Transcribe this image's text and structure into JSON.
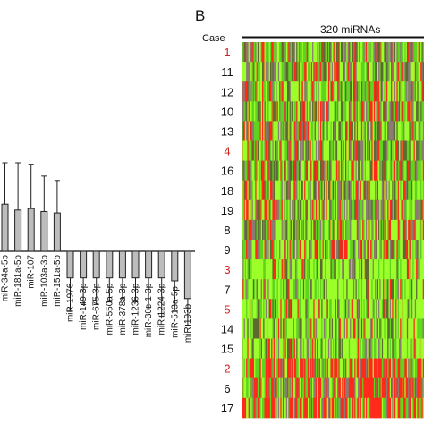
{
  "panel_a": {
    "chart_data": {
      "type": "bar",
      "categories": [
        "miR-34a-5p",
        "miR-181a-5p",
        "miR-107",
        "miR-103a-3p",
        "miR-151a-5p",
        "miR-1976",
        "miR-149-3p",
        "miR-675-3p",
        "miR-550a-5p",
        "miR-378a-3p",
        "miR-1236-3p",
        "miR-30c-1-3p",
        "miR-1224-3p",
        "miR-513a-5p",
        "miR-193b"
      ],
      "values": [
        1.6,
        1.4,
        1.45,
        1.35,
        1.3,
        -0.9,
        -0.9,
        -0.9,
        -0.9,
        -0.9,
        -0.9,
        -0.9,
        -0.9,
        -1.0,
        -1.6
      ],
      "errors": [
        1.4,
        1.6,
        1.5,
        1.2,
        1.1,
        1.1,
        0.9,
        0.9,
        0.8,
        0.7,
        0.8,
        1.0,
        1.3,
        1.0,
        0.9
      ],
      "ylim": [
        -2.5,
        4.0
      ],
      "bar_color": "#bdbdbd",
      "edge_color": "#222222"
    }
  },
  "panel_b": {
    "letter": "B",
    "case_header": "Case",
    "column_title": "320  miRNAs",
    "cases": [
      {
        "id": "1",
        "color": "#d42020",
        "profile": "mix"
      },
      {
        "id": "11",
        "color": "#111111",
        "profile": "mix"
      },
      {
        "id": "12",
        "color": "#111111",
        "profile": "mix"
      },
      {
        "id": "10",
        "color": "#111111",
        "profile": "mix"
      },
      {
        "id": "13",
        "color": "#111111",
        "profile": "mix"
      },
      {
        "id": "4",
        "color": "#d42020",
        "profile": "mix"
      },
      {
        "id": "16",
        "color": "#111111",
        "profile": "mix"
      },
      {
        "id": "18",
        "color": "#111111",
        "profile": "mix"
      },
      {
        "id": "19",
        "color": "#111111",
        "profile": "mix"
      },
      {
        "id": "8",
        "color": "#111111",
        "profile": "mix"
      },
      {
        "id": "9",
        "color": "#111111",
        "profile": "mix"
      },
      {
        "id": "3",
        "color": "#d42020",
        "profile": "green"
      },
      {
        "id": "7",
        "color": "#111111",
        "profile": "green"
      },
      {
        "id": "5",
        "color": "#d42020",
        "profile": "green"
      },
      {
        "id": "14",
        "color": "#111111",
        "profile": "green"
      },
      {
        "id": "15",
        "color": "#111111",
        "profile": "green"
      },
      {
        "id": "2",
        "color": "#d42020",
        "profile": "red"
      },
      {
        "id": "6",
        "color": "#111111",
        "profile": "red"
      },
      {
        "id": "17",
        "color": "#111111",
        "profile": "red"
      }
    ],
    "heatmap_colors": {
      "green_high": "#9cff2a",
      "green_mid": "#5fd41e",
      "dark": "#5a6a30",
      "gray": "#8a7c72",
      "red": "#ff2a1a"
    }
  }
}
